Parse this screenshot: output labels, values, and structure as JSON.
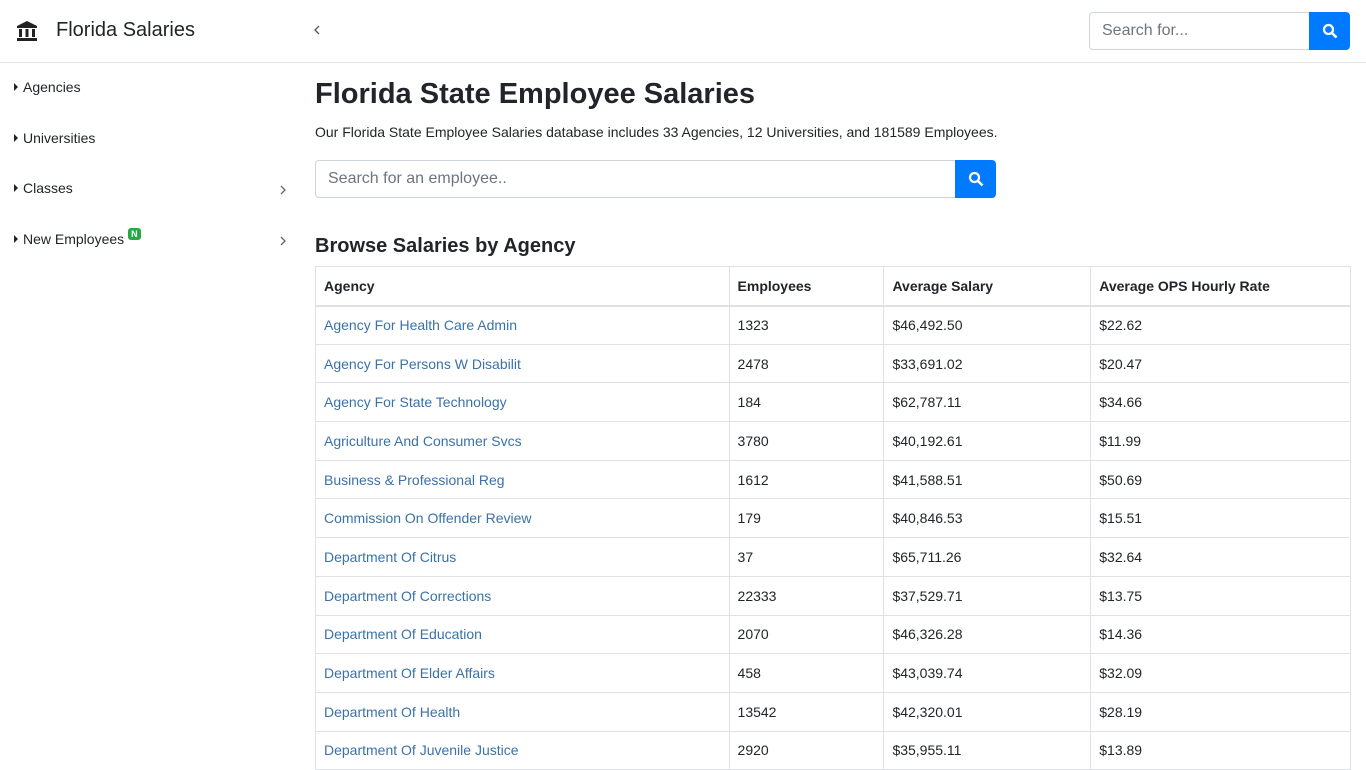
{
  "header": {
    "brand": "Florida Salaries",
    "search_placeholder": "Search for..."
  },
  "sidebar": {
    "items": [
      {
        "label": "Agencies"
      },
      {
        "label": "Universities"
      },
      {
        "label": "Classes"
      },
      {
        "label": "New Employees",
        "badge": "N"
      }
    ]
  },
  "main": {
    "title": "Florida State Employee Salaries",
    "description": "Our Florida State Employee Salaries database includes 33 Agencies, 12 Universities, and 181589 Employees.",
    "search_placeholder": "Search for an employee..",
    "section_title": "Browse Salaries by Agency",
    "table": {
      "columns": [
        "Agency",
        "Employees",
        "Average Salary",
        "Average OPS Hourly Rate"
      ],
      "rows": [
        [
          "Agency For Health Care Admin",
          "1323",
          "$46,492.50",
          "$22.62"
        ],
        [
          "Agency For Persons W Disabilit",
          "2478",
          "$33,691.02",
          "$20.47"
        ],
        [
          "Agency For State Technology",
          "184",
          "$62,787.11",
          "$34.66"
        ],
        [
          "Agriculture And Consumer Svcs",
          "3780",
          "$40,192.61",
          "$11.99"
        ],
        [
          "Business & Professional Reg",
          "1612",
          "$41,588.51",
          "$50.69"
        ],
        [
          "Commission On Offender Review",
          "179",
          "$40,846.53",
          "$15.51"
        ],
        [
          "Department Of Citrus",
          "37",
          "$65,711.26",
          "$32.64"
        ],
        [
          "Department Of Corrections",
          "22333",
          "$37,529.71",
          "$13.75"
        ],
        [
          "Department Of Education",
          "2070",
          "$46,326.28",
          "$14.36"
        ],
        [
          "Department Of Elder Affairs",
          "458",
          "$43,039.74",
          "$32.09"
        ],
        [
          "Department Of Health",
          "13542",
          "$42,320.01",
          "$28.19"
        ],
        [
          "Department Of Juvenile Justice",
          "2920",
          "$35,955.11",
          "$13.89"
        ]
      ]
    }
  }
}
